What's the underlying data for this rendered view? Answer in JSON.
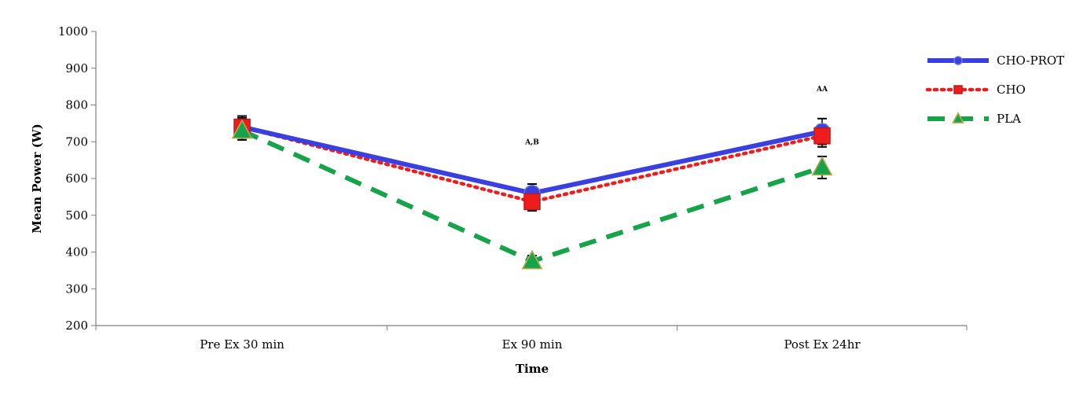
{
  "chart_data": {
    "type": "line",
    "categories": [
      "Pre Ex 30 min",
      "Ex 90 min",
      "Post Ex 24hr"
    ],
    "xlabel": "Time",
    "ylabel": "Mean Power (W)",
    "ylim": [
      200,
      1000
    ],
    "yticks": [
      "200",
      "300",
      "400",
      "500",
      "600",
      "700",
      "800",
      "900",
      "1000"
    ],
    "grid": false,
    "legend_position": "right",
    "series": [
      {
        "name": "CHO-PROT",
        "values": [
          740,
          560,
          728
        ],
        "error": [
          25,
          25,
          35
        ],
        "color": "#3a3fe0",
        "style": "solid",
        "marker": "circle"
      },
      {
        "name": "CHO",
        "values": [
          740,
          537,
          716
        ],
        "error": [
          30,
          25,
          30
        ],
        "color": "#ee1c1c",
        "style": "dotted",
        "marker": "square"
      },
      {
        "name": "PLA",
        "values": [
          730,
          375,
          630
        ],
        "error": [
          25,
          15,
          30
        ],
        "color": "#16a34a",
        "style": "dashed",
        "marker": "triangle"
      }
    ],
    "annotations": [
      {
        "text": "A,B",
        "category": "Ex 90 min",
        "y": 693
      },
      {
        "text": "AA",
        "category": "Post Ex 24hr",
        "y": 837
      }
    ]
  }
}
